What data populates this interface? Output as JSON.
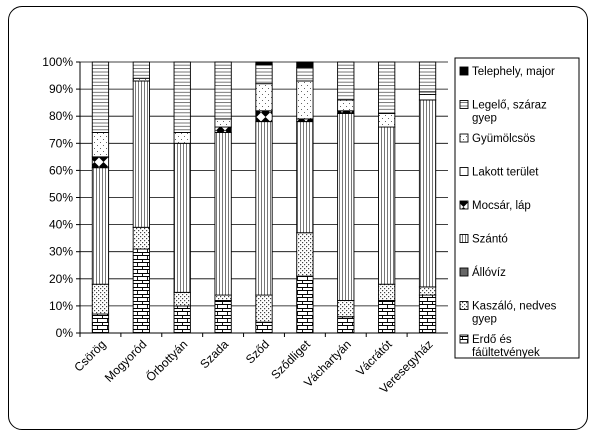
{
  "chart_data": {
    "type": "bar",
    "stacked": "percent",
    "title": "",
    "xlabel": "",
    "ylabel": "",
    "ylim": [
      0,
      100
    ],
    "grid": true,
    "legend_position": "right",
    "y_ticks": [
      "0%",
      "10%",
      "20%",
      "30%",
      "40%",
      "50%",
      "60%",
      "70%",
      "80%",
      "90%",
      "100%"
    ],
    "categories": [
      "Csörög",
      "Mogyoród",
      "Őrbottyán",
      "Szada",
      "Sződ",
      "Sződliget",
      "Váchartyán",
      "Vácrátót",
      "Veresegyház"
    ],
    "series": [
      {
        "name": "Erdő és fáültetvények",
        "values": [
          7,
          31,
          10,
          12,
          4,
          21,
          6,
          12,
          14
        ]
      },
      {
        "name": "Kaszáló, nedves gyep",
        "values": [
          11,
          8,
          5,
          2,
          10,
          16,
          6,
          6,
          3
        ]
      },
      {
        "name": "Állóvíz",
        "values": [
          0,
          0,
          0,
          0,
          0,
          0,
          0,
          0,
          0
        ]
      },
      {
        "name": "Szántó",
        "values": [
          43,
          54,
          55,
          60,
          64,
          41,
          69,
          58,
          69
        ]
      },
      {
        "name": "Mocsár, láp",
        "values": [
          4,
          0,
          0,
          2,
          4,
          1,
          1,
          0,
          0
        ]
      },
      {
        "name": "Lakott terület",
        "values": [
          0,
          0,
          0,
          0,
          0,
          0,
          0,
          0,
          2
        ]
      },
      {
        "name": "Gyümölcsös",
        "values": [
          9,
          1,
          4,
          3,
          10,
          14,
          4,
          5,
          1
        ]
      },
      {
        "name": "Legelő, száraz gyep",
        "values": [
          26,
          6,
          26,
          21,
          7,
          5,
          14,
          19,
          11
        ]
      },
      {
        "name": "Telephely, major",
        "values": [
          0,
          0,
          0,
          0,
          1,
          2,
          0,
          0,
          0
        ]
      }
    ]
  }
}
